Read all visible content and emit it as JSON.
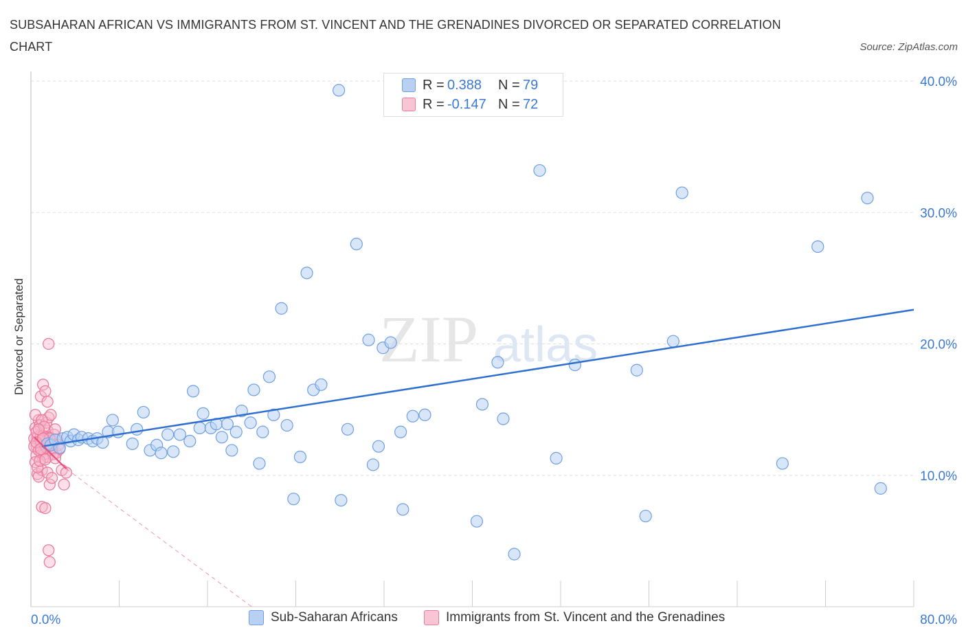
{
  "title": "SUBSAHARAN AFRICAN VS IMMIGRANTS FROM ST. VINCENT AND THE GRENADINES DIVORCED OR SEPARATED CORRELATION CHART",
  "source": "Source: ZipAtlas.com",
  "watermark": {
    "zip": "ZIP",
    "atlas": "atlas"
  },
  "legend": {
    "rows": [
      {
        "r_label": "R =",
        "r_value": "0.388",
        "n_label": "N =",
        "n_value": "79"
      },
      {
        "r_label": "R =",
        "r_value": "-0.147",
        "n_label": "N =",
        "n_value": "72"
      }
    ]
  },
  "bottom_legend": [
    "Sub-Saharan Africans",
    "Immigrants from St. Vincent and the Grenadines"
  ],
  "colors": {
    "blue_fill": "#b8d1f3",
    "blue_stroke": "#6e9fe3",
    "blue_line": "#2f6fd0",
    "pink_fill": "#f8b9cc",
    "pink_stroke": "#ea7c9d",
    "pink_line": "#e5517d",
    "tick_text": "#3a78d4",
    "grid": "#dddddd"
  },
  "chart_data": {
    "type": "scatter",
    "title": "SUBSAHARAN AFRICAN VS IMMIGRANTS FROM ST. VINCENT AND THE GRENADINES DIVORCED OR SEPARATED CORRELATION CHART",
    "xlabel": "",
    "ylabel": "Divorced or Separated",
    "xlim": [
      0,
      80
    ],
    "ylim": [
      0,
      40
    ],
    "x_tick_labels": [
      "0.0%",
      "80.0%"
    ],
    "y_ticks": [
      10,
      20,
      30,
      40
    ],
    "y_tick_labels": [
      "10.0%",
      "20.0%",
      "30.0%",
      "40.0%"
    ],
    "grid": true,
    "series": [
      {
        "name": "Sub-Saharan Africans",
        "R": 0.388,
        "N": 79,
        "trend": {
          "x": [
            1.0,
            80.0
          ],
          "y": [
            12.2,
            22.6
          ]
        },
        "points": [
          [
            1.5,
            12.4
          ],
          [
            1.8,
            12.3
          ],
          [
            2.2,
            12.7
          ],
          [
            2.6,
            12.1
          ],
          [
            2.9,
            12.8
          ],
          [
            3.3,
            12.9
          ],
          [
            3.6,
            12.6
          ],
          [
            3.9,
            13.1
          ],
          [
            4.3,
            12.7
          ],
          [
            4.6,
            12.9
          ],
          [
            5.2,
            12.8
          ],
          [
            5.6,
            12.6
          ],
          [
            6.0,
            12.8
          ],
          [
            6.5,
            12.5
          ],
          [
            7.0,
            13.3
          ],
          [
            7.4,
            14.2
          ],
          [
            7.9,
            13.3
          ],
          [
            9.2,
            12.4
          ],
          [
            9.6,
            13.5
          ],
          [
            10.2,
            14.8
          ],
          [
            10.8,
            11.9
          ],
          [
            11.4,
            12.3
          ],
          [
            11.8,
            11.7
          ],
          [
            12.4,
            13.1
          ],
          [
            12.9,
            11.8
          ],
          [
            13.5,
            13.1
          ],
          [
            14.4,
            12.6
          ],
          [
            14.7,
            16.4
          ],
          [
            15.3,
            13.6
          ],
          [
            15.6,
            14.7
          ],
          [
            16.3,
            13.6
          ],
          [
            16.8,
            13.9
          ],
          [
            17.3,
            12.9
          ],
          [
            17.8,
            13.9
          ],
          [
            18.2,
            11.9
          ],
          [
            18.6,
            13.3
          ],
          [
            19.1,
            14.9
          ],
          [
            19.9,
            14.0
          ],
          [
            20.2,
            16.5
          ],
          [
            20.7,
            10.9
          ],
          [
            21.0,
            13.3
          ],
          [
            21.6,
            17.5
          ],
          [
            22.0,
            14.6
          ],
          [
            22.7,
            22.7
          ],
          [
            23.2,
            13.8
          ],
          [
            23.8,
            8.2
          ],
          [
            24.4,
            11.4
          ],
          [
            25.0,
            25.4
          ],
          [
            25.6,
            16.5
          ],
          [
            26.3,
            16.9
          ],
          [
            27.9,
            39.3
          ],
          [
            28.1,
            8.1
          ],
          [
            28.7,
            13.5
          ],
          [
            29.5,
            27.6
          ],
          [
            30.6,
            20.3
          ],
          [
            31.0,
            10.8
          ],
          [
            31.5,
            12.2
          ],
          [
            31.9,
            19.7
          ],
          [
            32.6,
            20.1
          ],
          [
            33.5,
            13.3
          ],
          [
            33.7,
            7.4
          ],
          [
            34.6,
            14.5
          ],
          [
            35.7,
            14.6
          ],
          [
            40.4,
            6.5
          ],
          [
            40.9,
            15.4
          ],
          [
            42.3,
            18.6
          ],
          [
            42.8,
            14.3
          ],
          [
            43.8,
            4.0
          ],
          [
            46.1,
            33.2
          ],
          [
            47.6,
            11.3
          ],
          [
            49.3,
            18.4
          ],
          [
            54.9,
            18.0
          ],
          [
            55.7,
            6.9
          ],
          [
            58.2,
            20.2
          ],
          [
            59.0,
            31.5
          ],
          [
            68.1,
            10.9
          ],
          [
            71.3,
            27.4
          ],
          [
            75.8,
            31.1
          ],
          [
            77.0,
            9.0
          ]
        ]
      },
      {
        "name": "Immigrants from St. Vincent and the Grenadines",
        "R": -0.147,
        "N": 72,
        "trend": {
          "x": [
            0.3,
            3.2
          ],
          "y": [
            12.9,
            10.5
          ]
        },
        "trend_dashed": {
          "x": [
            3.2,
            20.0
          ],
          "y": [
            10.5,
            0.0
          ]
        },
        "points": [
          [
            0.3,
            12.8
          ],
          [
            0.4,
            13.6
          ],
          [
            0.5,
            12.2
          ],
          [
            0.6,
            12.9
          ],
          [
            0.7,
            14.2
          ],
          [
            0.5,
            11.5
          ],
          [
            0.8,
            12.6
          ],
          [
            0.9,
            13.1
          ],
          [
            0.6,
            10.1
          ],
          [
            0.4,
            14.6
          ],
          [
            1.0,
            12.0
          ],
          [
            1.1,
            11.3
          ],
          [
            1.2,
            12.5
          ],
          [
            0.8,
            13.8
          ],
          [
            1.3,
            12.9
          ],
          [
            0.9,
            11.8
          ],
          [
            1.4,
            12.7
          ],
          [
            1.0,
            10.4
          ],
          [
            1.5,
            13.4
          ],
          [
            0.7,
            9.9
          ],
          [
            1.6,
            12.3
          ],
          [
            1.2,
            11.6
          ],
          [
            1.7,
            12.9
          ],
          [
            0.9,
            16.0
          ],
          [
            1.8,
            12.1
          ],
          [
            1.1,
            16.9
          ],
          [
            1.9,
            11.9
          ],
          [
            1.3,
            16.4
          ],
          [
            2.0,
            12.4
          ],
          [
            1.5,
            15.6
          ],
          [
            1.4,
            14.0
          ],
          [
            1.6,
            14.4
          ],
          [
            2.1,
            13.1
          ],
          [
            1.8,
            14.6
          ],
          [
            2.2,
            13.5
          ],
          [
            2.3,
            11.7
          ],
          [
            1.5,
            10.2
          ],
          [
            1.7,
            9.3
          ],
          [
            2.4,
            12.7
          ],
          [
            1.6,
            20.0
          ],
          [
            1.9,
            9.8
          ],
          [
            2.5,
            12.3
          ],
          [
            1.0,
            7.6
          ],
          [
            1.3,
            7.5
          ],
          [
            1.6,
            4.3
          ],
          [
            1.7,
            3.4
          ],
          [
            2.6,
            12.0
          ],
          [
            2.8,
            10.4
          ],
          [
            3.0,
            9.3
          ],
          [
            3.2,
            10.2
          ],
          [
            0.3,
            12.2
          ],
          [
            0.5,
            13.3
          ],
          [
            0.7,
            11.9
          ],
          [
            0.9,
            12.6
          ],
          [
            1.1,
            13.0
          ],
          [
            1.3,
            12.3
          ],
          [
            1.5,
            11.4
          ],
          [
            1.7,
            12.8
          ],
          [
            1.9,
            12.0
          ],
          [
            0.4,
            11.0
          ],
          [
            0.6,
            10.6
          ],
          [
            0.8,
            11.1
          ],
          [
            1.0,
            14.2
          ],
          [
            1.2,
            13.7
          ],
          [
            1.4,
            12.1
          ],
          [
            2.0,
            11.6
          ],
          [
            2.2,
            11.3
          ],
          [
            0.5,
            12.5
          ],
          [
            0.7,
            13.5
          ],
          [
            0.9,
            12.0
          ],
          [
            1.1,
            12.8
          ],
          [
            1.3,
            11.2
          ]
        ]
      }
    ]
  }
}
